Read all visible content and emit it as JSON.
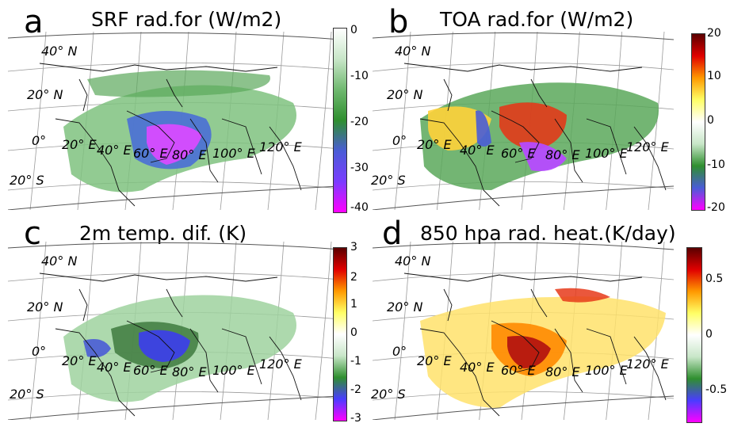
{
  "panels": [
    {
      "id": "a",
      "letter": "a",
      "title": "SRF rad.for (W/m2)",
      "lat_labels": [
        "40° N",
        "20° N",
        "0°",
        "20° S"
      ],
      "lon_labels": [
        "20° E",
        "40° E",
        "60° E",
        "80° E",
        "100° E",
        "120° E"
      ],
      "colorbar": {
        "ticks": [
          "0",
          "-10",
          "-20",
          "-30",
          "-40"
        ],
        "min": -40,
        "max": 0,
        "colors": [
          "#ff00ff",
          "#7a3cff",
          "#4a5cd6",
          "#2f8f2f",
          "#6fb86f",
          "#c8e6c8",
          "#ffffff"
        ]
      }
    },
    {
      "id": "b",
      "letter": "b",
      "title": "TOA rad.for (W/m2)",
      "lat_labels": [
        "40° N",
        "20° N",
        "0°",
        "20° S"
      ],
      "lon_labels": [
        "20° E",
        "40° E",
        "60° E",
        "80° E",
        "100° E",
        "120° E"
      ],
      "colorbar": {
        "ticks": [
          "20",
          "10",
          "0",
          "-10",
          "-20"
        ],
        "min": -20,
        "max": 20,
        "colors": [
          "#ff00ff",
          "#4a5cd6",
          "#2f8f2f",
          "#c8e6c8",
          "#ffffff",
          "#ffff66",
          "#ff9900",
          "#e00000",
          "#5a0000"
        ]
      }
    },
    {
      "id": "c",
      "letter": "c",
      "title": "2m temp. dif. (K)",
      "lat_labels": [
        "40° N",
        "20° N",
        "0°",
        "20° S"
      ],
      "lon_labels": [
        "20° E",
        "40° E",
        "60° E",
        "80° E",
        "100° E",
        "120° E"
      ],
      "colorbar": {
        "ticks": [
          "3",
          "2",
          "1",
          "0",
          "-1",
          "-2",
          "-3"
        ],
        "min": -3,
        "max": 3,
        "colors": [
          "#ff00ff",
          "#4a3cff",
          "#2f8f2f",
          "#c8e6c8",
          "#ffffff",
          "#ffff66",
          "#ff9900",
          "#e00000",
          "#5a0000"
        ]
      }
    },
    {
      "id": "d",
      "letter": "d",
      "title": "850 hpa rad. heat.(K/day)",
      "lat_labels": [
        "40° N",
        "20° N",
        "0°",
        "20° S"
      ],
      "lon_labels": [
        "20° E",
        "40° E",
        "60° E",
        "80° E",
        "100° E",
        "120° E"
      ],
      "colorbar": {
        "ticks": [
          "0.5",
          "0",
          "-0.5"
        ],
        "min": -0.8,
        "max": 0.8,
        "colors": [
          "#ff00ff",
          "#4a3cff",
          "#2f8f2f",
          "#c8e6c8",
          "#ffffff",
          "#ffff66",
          "#ff9900",
          "#e00000",
          "#5a0000"
        ]
      }
    }
  ]
}
